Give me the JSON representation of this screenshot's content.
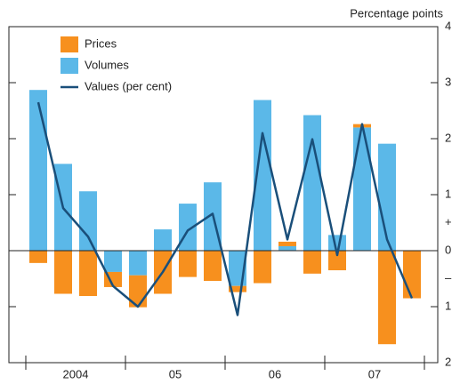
{
  "chart_data": {
    "type": "bar",
    "y_axis_label": "Percentage points",
    "categories": [
      null,
      null,
      null,
      null,
      null,
      null,
      null,
      null,
      null,
      null,
      null,
      null,
      null,
      null,
      null,
      null
    ],
    "year_labels": [
      "2004",
      "05",
      "06",
      "07"
    ],
    "series": [
      {
        "name": "Prices",
        "color": "#f7901e",
        "values": [
          -0.22,
          -0.77,
          -0.81,
          -0.27,
          -0.57,
          -0.77,
          -0.47,
          -0.54,
          -0.11,
          -0.58,
          0.08,
          -0.41,
          -0.35,
          0.06,
          -1.67,
          -0.85
        ]
      },
      {
        "name": "Volumes",
        "color": "#5bb8e8",
        "values": [
          2.87,
          1.55,
          1.06,
          -0.38,
          -0.44,
          0.38,
          0.84,
          1.22,
          -0.63,
          2.69,
          0.08,
          2.42,
          0.28,
          2.2,
          1.91,
          0
        ]
      },
      {
        "name": "Values (per cent)",
        "type": "line",
        "color": "#1a4f7a",
        "values": [
          2.65,
          0.76,
          0.25,
          -0.63,
          -1.0,
          -0.38,
          0.36,
          0.66,
          -1.15,
          2.1,
          0.2,
          1.99,
          -0.08,
          2.26,
          0.2,
          -0.85
        ]
      }
    ],
    "ylim": [
      -2,
      4
    ],
    "yticks": [
      4,
      3,
      2,
      1,
      0,
      {
        "value": -1,
        "label": "1"
      },
      {
        "value": -2,
        "label": "2"
      }
    ],
    "y_sign_labels": [
      {
        "value": 0.5,
        "label": "+"
      },
      {
        "value": -0.5,
        "label": "–"
      }
    ]
  }
}
